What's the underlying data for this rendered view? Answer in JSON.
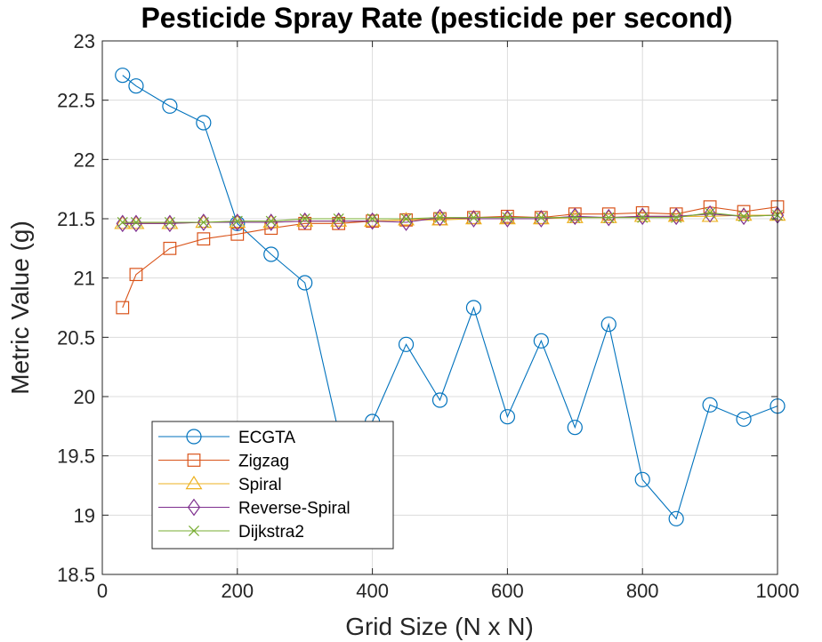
{
  "chart_data": {
    "type": "line",
    "title": "Pesticide Spray Rate (pesticide per second)",
    "xlabel": "Grid Size (N x N)",
    "ylabel": "Metric Value (g)",
    "xlim": [
      0,
      1000
    ],
    "ylim": [
      18.5,
      23
    ],
    "xticks": [
      0,
      200,
      400,
      600,
      800,
      1000
    ],
    "yticks": [
      18.5,
      19,
      19.5,
      20,
      20.5,
      21,
      21.5,
      22,
      22.5,
      23
    ],
    "xtick_labels": [
      "0",
      "200",
      "400",
      "600",
      "800",
      "1000"
    ],
    "ytick_labels": [
      "18.5",
      "19",
      "19.5",
      "20",
      "20.5",
      "21",
      "21.5",
      "22",
      "22.5",
      "23"
    ],
    "grid": true,
    "legend_position": "bottom-left",
    "x": [
      30,
      50,
      100,
      150,
      200,
      250,
      300,
      350,
      400,
      450,
      500,
      550,
      600,
      650,
      700,
      750,
      800,
      850,
      900,
      950,
      1000
    ],
    "series": [
      {
        "name": "ECGTA",
        "color": "#0072BD",
        "marker": "circle",
        "values": [
          22.71,
          22.62,
          22.45,
          22.31,
          21.46,
          21.2,
          20.96,
          19.7,
          19.79,
          20.44,
          19.97,
          20.75,
          19.83,
          20.47,
          19.74,
          20.61,
          19.3,
          18.97,
          19.93,
          19.81,
          19.92
        ]
      },
      {
        "name": "Zigzag",
        "color": "#D95319",
        "marker": "square",
        "values": [
          20.75,
          21.03,
          21.25,
          21.33,
          21.37,
          21.42,
          21.46,
          21.46,
          21.48,
          21.49,
          21.5,
          21.51,
          21.52,
          21.51,
          21.54,
          21.54,
          21.55,
          21.54,
          21.6,
          21.56,
          21.6
        ]
      },
      {
        "name": "Spiral",
        "color": "#EDB120",
        "marker": "triangle",
        "values": [
          21.46,
          21.46,
          21.46,
          21.47,
          21.47,
          21.47,
          21.48,
          21.48,
          21.48,
          21.49,
          21.49,
          21.5,
          21.5,
          21.5,
          21.51,
          21.51,
          21.52,
          21.52,
          21.52,
          21.53,
          21.53
        ]
      },
      {
        "name": "Reverse-Spiral",
        "color": "#7E2F8E",
        "marker": "diamond",
        "values": [
          21.46,
          21.46,
          21.46,
          21.47,
          21.47,
          21.47,
          21.48,
          21.48,
          21.48,
          21.47,
          21.51,
          21.5,
          21.5,
          21.5,
          21.52,
          21.51,
          21.52,
          21.52,
          21.54,
          21.52,
          21.53
        ]
      },
      {
        "name": "Dijkstra2",
        "color": "#77AC30",
        "marker": "x",
        "values": [
          21.47,
          21.47,
          21.47,
          21.47,
          21.48,
          21.48,
          21.5,
          21.5,
          21.5,
          21.5,
          21.51,
          21.51,
          21.51,
          21.51,
          21.51,
          21.51,
          21.51,
          21.51,
          21.55,
          21.52,
          21.53
        ]
      }
    ]
  }
}
